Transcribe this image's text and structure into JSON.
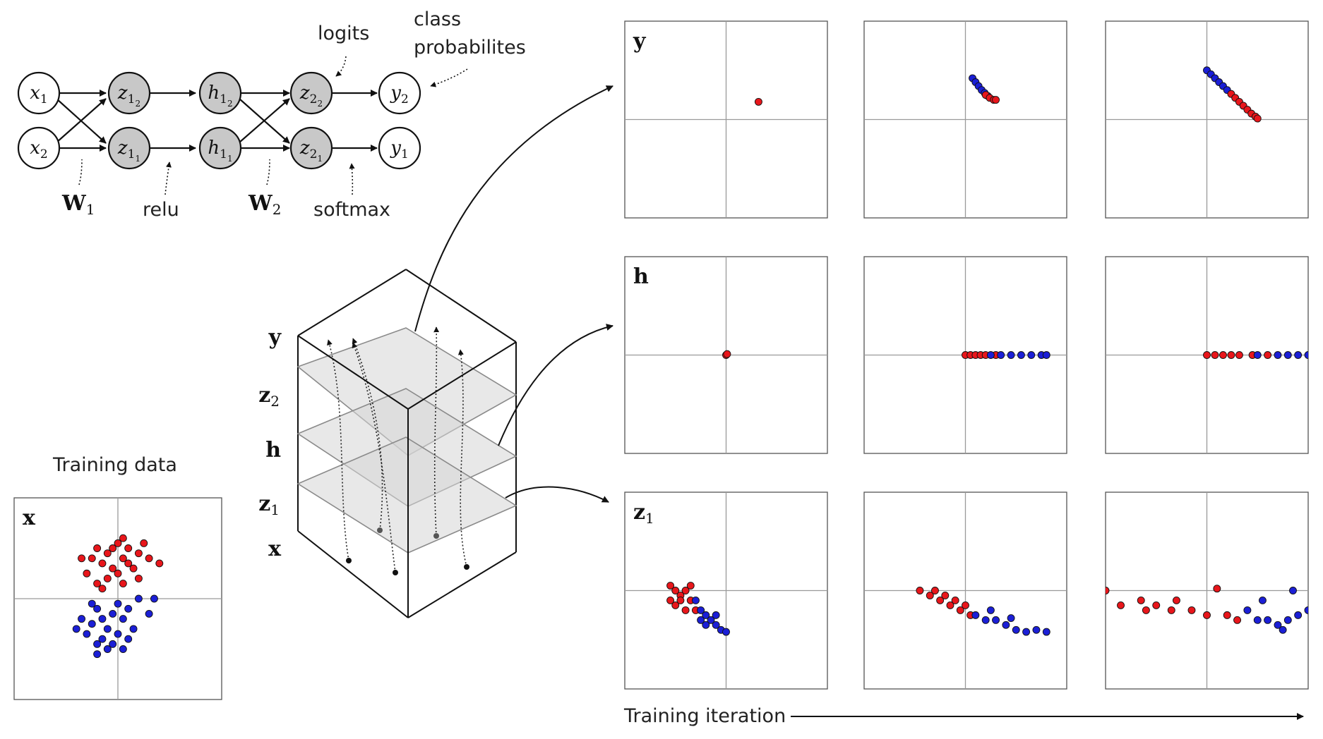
{
  "network": {
    "nodes": [
      {
        "id": "x1",
        "sym": "x",
        "sub": "1",
        "filled": false
      },
      {
        "id": "x2",
        "sym": "x",
        "sub": "2",
        "filled": false
      },
      {
        "id": "z1_2",
        "sym": "z",
        "sub": "1",
        "subsub": "2",
        "filled": true
      },
      {
        "id": "z1_1",
        "sym": "z",
        "sub": "1",
        "subsub": "1",
        "filled": true
      },
      {
        "id": "h1_2",
        "sym": "h",
        "sub": "1",
        "subsub": "2",
        "filled": true
      },
      {
        "id": "h1_1",
        "sym": "h",
        "sub": "1",
        "subsub": "1",
        "filled": true
      },
      {
        "id": "z2_2",
        "sym": "z",
        "sub": "2",
        "subsub": "2",
        "filled": true
      },
      {
        "id": "z2_1",
        "sym": "z",
        "sub": "2",
        "subsub": "1",
        "filled": true
      },
      {
        "id": "y2",
        "sym": "y",
        "sub": "2",
        "filled": false
      },
      {
        "id": "y1",
        "sym": "y",
        "sub": "1",
        "filled": false
      }
    ],
    "labels": {
      "logits": "logits",
      "class_line1": "class",
      "class_line2": "probabilites",
      "w1_sym": "W",
      "w1_sub": "1",
      "relu": "relu",
      "w2_sym": "W",
      "w2_sub": "2",
      "softmax": "softmax"
    }
  },
  "stack": {
    "layers": [
      {
        "sym": "y",
        "sub": ""
      },
      {
        "sym": "z",
        "sub": "2"
      },
      {
        "sym": "h",
        "sub": ""
      },
      {
        "sym": "z",
        "sub": "1"
      },
      {
        "sym": "x",
        "sub": ""
      }
    ]
  },
  "training": {
    "title": "Training data",
    "panel_label": "x",
    "axis_label": "Training iteration"
  },
  "colors": {
    "red": "#e8161b",
    "blue": "#1b1fd6",
    "node_fill": "#c8c8c8",
    "plane_fill": "#d6d6d6"
  },
  "chart_data": [
    {
      "type": "scatter",
      "panel": "training-data",
      "label": "x",
      "xlim": [
        -1,
        1
      ],
      "ylim": [
        -1,
        1
      ],
      "series": [
        {
          "color": "red",
          "points": [
            [
              -0.25,
              0.4
            ],
            [
              -0.2,
              0.5
            ],
            [
              -0.15,
              0.35
            ],
            [
              -0.1,
              0.45
            ],
            [
              -0.05,
              0.3
            ],
            [
              0.0,
              0.55
            ],
            [
              0.05,
              0.4
            ],
            [
              0.1,
              0.5
            ],
            [
              -0.3,
              0.25
            ],
            [
              0.15,
              0.3
            ],
            [
              -0.2,
              0.15
            ],
            [
              0.2,
              0.45
            ],
            [
              0.0,
              0.25
            ],
            [
              -0.1,
              0.2
            ],
            [
              0.25,
              0.55
            ],
            [
              -0.05,
              0.5
            ],
            [
              0.1,
              0.35
            ],
            [
              0.05,
              0.6
            ],
            [
              -0.15,
              0.1
            ],
            [
              0.3,
              0.4
            ],
            [
              0.2,
              0.2
            ],
            [
              -0.35,
              0.4
            ],
            [
              0.05,
              0.15
            ],
            [
              0.4,
              0.35
            ]
          ]
        },
        {
          "color": "blue",
          "points": [
            [
              -0.2,
              -0.1
            ],
            [
              -0.15,
              -0.2
            ],
            [
              -0.1,
              -0.3
            ],
            [
              -0.05,
              -0.15
            ],
            [
              0.0,
              -0.05
            ],
            [
              -0.25,
              -0.25
            ],
            [
              -0.3,
              -0.35
            ],
            [
              -0.2,
              -0.45
            ],
            [
              -0.1,
              -0.5
            ],
            [
              0.0,
              -0.35
            ],
            [
              0.05,
              -0.2
            ],
            [
              0.1,
              -0.1
            ],
            [
              -0.15,
              -0.4
            ],
            [
              -0.05,
              -0.45
            ],
            [
              -0.35,
              -0.2
            ],
            [
              0.15,
              -0.3
            ],
            [
              -0.25,
              -0.05
            ],
            [
              0.2,
              0.0
            ],
            [
              0.1,
              -0.4
            ],
            [
              -0.4,
              -0.3
            ],
            [
              0.05,
              -0.5
            ],
            [
              -0.2,
              -0.55
            ],
            [
              0.3,
              -0.15
            ],
            [
              0.35,
              0.0
            ]
          ]
        }
      ]
    },
    {
      "type": "scatter",
      "panel": "y-iter-1",
      "label": "y",
      "xlim": [
        -1,
        1
      ],
      "ylim": [
        -1,
        1
      ],
      "series": [
        {
          "color": "red",
          "points": [
            [
              0.32,
              0.18
            ]
          ]
        }
      ]
    },
    {
      "type": "scatter",
      "panel": "y-iter-2",
      "label": "",
      "xlim": [
        -1,
        1
      ],
      "ylim": [
        -1,
        1
      ],
      "series": [
        {
          "color": "blue",
          "points": [
            [
              0.07,
              0.42
            ],
            [
              0.1,
              0.38
            ],
            [
              0.13,
              0.34
            ],
            [
              0.16,
              0.3
            ],
            [
              0.19,
              0.27
            ],
            [
              0.22,
              0.24
            ]
          ]
        },
        {
          "color": "red",
          "points": [
            [
              0.2,
              0.25
            ],
            [
              0.24,
              0.22
            ],
            [
              0.28,
              0.2
            ],
            [
              0.3,
              0.2
            ]
          ]
        }
      ]
    },
    {
      "type": "scatter",
      "panel": "y-iter-3",
      "label": "",
      "xlim": [
        -1,
        1
      ],
      "ylim": [
        -1,
        1
      ],
      "series": [
        {
          "color": "blue",
          "points": [
            [
              0.0,
              0.5
            ],
            [
              0.04,
              0.46
            ],
            [
              0.08,
              0.42
            ],
            [
              0.12,
              0.38
            ],
            [
              0.16,
              0.34
            ],
            [
              0.2,
              0.3
            ]
          ]
        },
        {
          "color": "red",
          "points": [
            [
              0.24,
              0.26
            ],
            [
              0.28,
              0.22
            ],
            [
              0.32,
              0.18
            ],
            [
              0.36,
              0.14
            ],
            [
              0.4,
              0.1
            ],
            [
              0.44,
              0.06
            ],
            [
              0.48,
              0.03
            ],
            [
              0.5,
              0.01
            ]
          ]
        }
      ]
    },
    {
      "type": "scatter",
      "panel": "h-iter-1",
      "label": "h",
      "xlim": [
        -1,
        1
      ],
      "ylim": [
        -1,
        1
      ],
      "series": [
        {
          "color": "red",
          "points": [
            [
              0.0,
              0.0
            ],
            [
              0.01,
              0.01
            ]
          ]
        }
      ]
    },
    {
      "type": "scatter",
      "panel": "h-iter-2",
      "label": "",
      "xlim": [
        -1,
        1
      ],
      "ylim": [
        -1,
        1
      ],
      "series": [
        {
          "color": "red",
          "points": [
            [
              0.0,
              0.0
            ],
            [
              0.05,
              0.0
            ],
            [
              0.1,
              0.0
            ],
            [
              0.15,
              0.0
            ],
            [
              0.2,
              0.0
            ],
            [
              0.3,
              0.0
            ]
          ]
        },
        {
          "color": "blue",
          "points": [
            [
              0.25,
              0.0
            ],
            [
              0.35,
              0.0
            ],
            [
              0.45,
              0.0
            ],
            [
              0.55,
              0.0
            ],
            [
              0.65,
              0.0
            ],
            [
              0.75,
              0.0
            ],
            [
              0.8,
              0.0
            ]
          ]
        }
      ]
    },
    {
      "type": "scatter",
      "panel": "h-iter-3",
      "label": "",
      "xlim": [
        -1,
        1
      ],
      "ylim": [
        -1,
        1
      ],
      "series": [
        {
          "color": "red",
          "points": [
            [
              0.0,
              0.0
            ],
            [
              0.08,
              0.0
            ],
            [
              0.16,
              0.0
            ],
            [
              0.24,
              0.0
            ],
            [
              0.32,
              0.0
            ],
            [
              0.45,
              0.0
            ],
            [
              0.6,
              0.0
            ]
          ]
        },
        {
          "color": "blue",
          "points": [
            [
              0.5,
              0.0
            ],
            [
              0.7,
              0.0
            ],
            [
              0.8,
              0.0
            ],
            [
              0.9,
              0.0
            ],
            [
              1.0,
              0.0
            ]
          ]
        }
      ]
    },
    {
      "type": "scatter",
      "panel": "z1-iter-1",
      "label": "z1",
      "xlim": [
        -1,
        1
      ],
      "ylim": [
        -1,
        1
      ],
      "series": [
        {
          "color": "red",
          "points": [
            [
              -0.55,
              0.05
            ],
            [
              -0.5,
              0.0
            ],
            [
              -0.45,
              -0.05
            ],
            [
              -0.4,
              0.0
            ],
            [
              -0.45,
              -0.1
            ],
            [
              -0.35,
              -0.1
            ],
            [
              -0.5,
              -0.15
            ],
            [
              -0.3,
              -0.2
            ],
            [
              -0.4,
              -0.2
            ],
            [
              -0.55,
              -0.1
            ],
            [
              -0.35,
              0.05
            ]
          ]
        },
        {
          "color": "blue",
          "points": [
            [
              -0.3,
              -0.1
            ],
            [
              -0.25,
              -0.2
            ],
            [
              -0.2,
              -0.25
            ],
            [
              -0.15,
              -0.3
            ],
            [
              -0.1,
              -0.35
            ],
            [
              -0.05,
              -0.4
            ],
            [
              -0.2,
              -0.35
            ],
            [
              -0.1,
              -0.25
            ],
            [
              -0.25,
              -0.3
            ],
            [
              0.0,
              -0.42
            ]
          ]
        }
      ]
    },
    {
      "type": "scatter",
      "panel": "z1-iter-2",
      "label": "",
      "xlim": [
        -1,
        1
      ],
      "ylim": [
        -1,
        1
      ],
      "series": [
        {
          "color": "red",
          "points": [
            [
              -0.45,
              0.0
            ],
            [
              -0.35,
              -0.05
            ],
            [
              -0.25,
              -0.1
            ],
            [
              -0.15,
              -0.15
            ],
            [
              -0.05,
              -0.2
            ],
            [
              0.05,
              -0.25
            ],
            [
              -0.3,
              0.0
            ],
            [
              -0.2,
              -0.05
            ],
            [
              0.0,
              -0.15
            ],
            [
              -0.1,
              -0.1
            ]
          ]
        },
        {
          "color": "blue",
          "points": [
            [
              0.1,
              -0.25
            ],
            [
              0.2,
              -0.3
            ],
            [
              0.3,
              -0.3
            ],
            [
              0.4,
              -0.35
            ],
            [
              0.5,
              -0.4
            ],
            [
              0.6,
              -0.42
            ],
            [
              0.7,
              -0.4
            ],
            [
              0.8,
              -0.42
            ],
            [
              0.25,
              -0.2
            ],
            [
              0.45,
              -0.28
            ]
          ]
        }
      ]
    },
    {
      "type": "scatter",
      "panel": "z1-iter-3",
      "label": "",
      "xlim": [
        -1,
        1
      ],
      "ylim": [
        -1,
        1
      ],
      "series": [
        {
          "color": "red",
          "points": [
            [
              -1.0,
              0.0
            ],
            [
              -0.85,
              -0.15
            ],
            [
              -0.65,
              -0.1
            ],
            [
              -0.5,
              -0.15
            ],
            [
              -0.35,
              -0.2
            ],
            [
              -0.15,
              -0.2
            ],
            [
              0.0,
              -0.25
            ],
            [
              0.2,
              -0.25
            ],
            [
              0.1,
              0.02
            ],
            [
              -0.6,
              -0.2
            ],
            [
              -0.3,
              -0.1
            ],
            [
              0.3,
              -0.3
            ]
          ]
        },
        {
          "color": "blue",
          "points": [
            [
              0.4,
              -0.2
            ],
            [
              0.5,
              -0.3
            ],
            [
              0.6,
              -0.3
            ],
            [
              0.7,
              -0.35
            ],
            [
              0.8,
              -0.3
            ],
            [
              0.9,
              -0.25
            ],
            [
              1.0,
              -0.2
            ],
            [
              0.85,
              0.0
            ],
            [
              0.55,
              -0.1
            ],
            [
              0.75,
              -0.4
            ]
          ]
        }
      ]
    }
  ]
}
